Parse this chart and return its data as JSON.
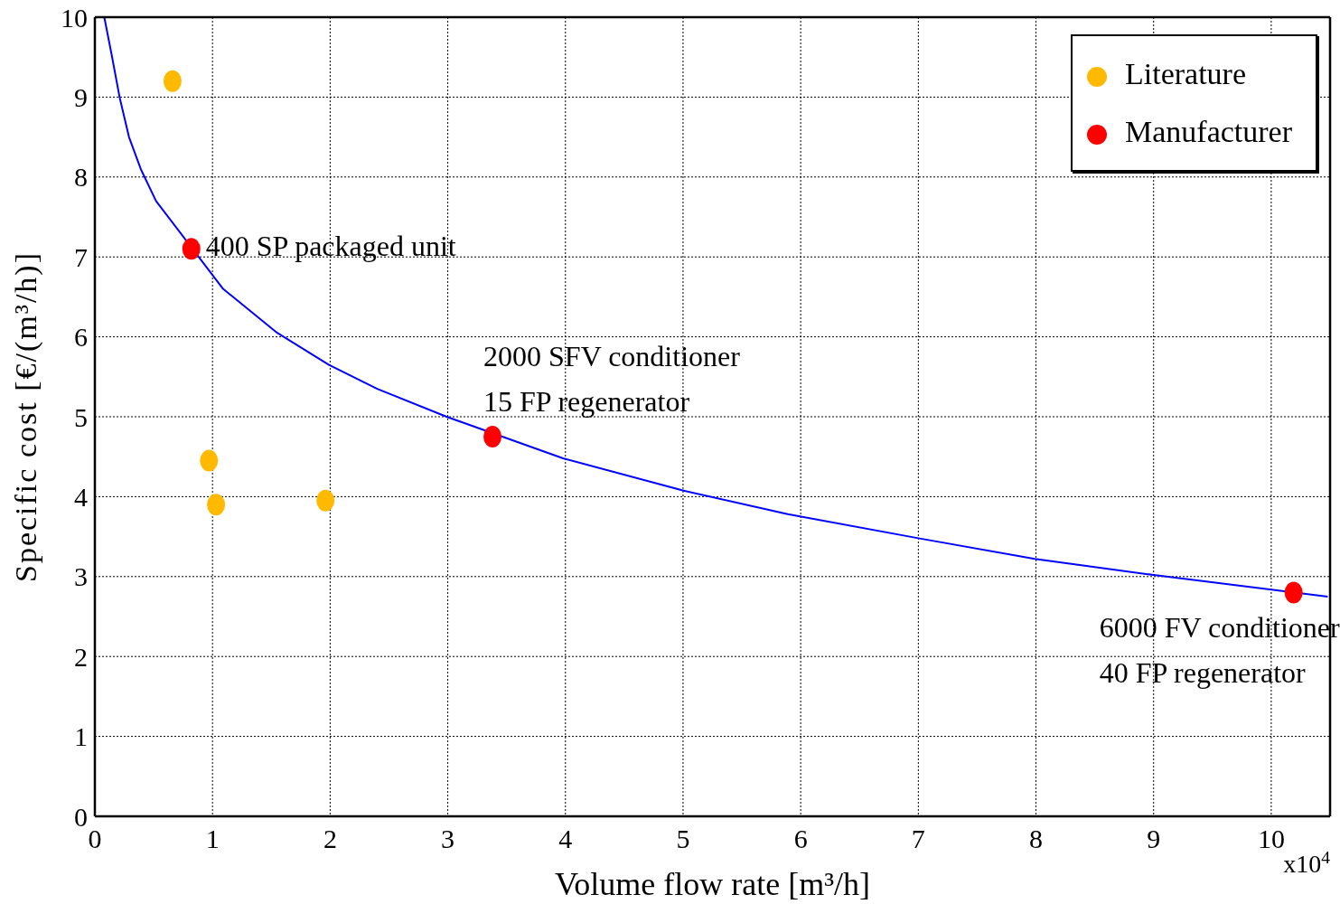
{
  "chart_data": {
    "type": "scatter",
    "xlabel": "Volume flow rate [m³/h]",
    "ylabel": "Specific cost [€/(m³/h)]",
    "xlim": [
      0,
      10.5
    ],
    "xticks": [
      0,
      1,
      2,
      3,
      4,
      5,
      6,
      7,
      8,
      9,
      10
    ],
    "ylim": [
      0,
      10
    ],
    "yticks": [
      0,
      1,
      2,
      3,
      4,
      5,
      6,
      7,
      8,
      9,
      10
    ],
    "grid": true,
    "legend": "top right",
    "series": [
      {
        "name": "Literature",
        "color": "#ffb900",
        "marker": "circle",
        "x": [
          0.66,
          0.97,
          1.03,
          1.96
        ],
        "values": [
          9.2,
          4.45,
          3.9,
          3.95
        ]
      },
      {
        "name": "Manufacturer",
        "color": "#ff0000",
        "marker": "circle",
        "x": [
          0.82,
          3.38,
          10.19
        ],
        "values": [
          7.1,
          4.75,
          2.8
        ]
      },
      {
        "type": "line",
        "color": "#0000ff",
        "marker": "none",
        "line_style": "solid",
        "x": [
          0.08,
          0.14,
          0.21,
          0.29,
          0.39,
          0.52,
          1.09,
          1.55,
          1.99,
          2.4,
          2.99,
          3.98,
          4.99,
          5.89,
          7.0,
          7.99,
          9.0,
          10.48
        ],
        "values": [
          10,
          9.55,
          9.0,
          8.5,
          8.1,
          7.7,
          6.6,
          6.05,
          5.65,
          5.35,
          5.0,
          4.48,
          4.08,
          3.78,
          3.48,
          3.22,
          3.02,
          2.75
        ]
      }
    ],
    "annotations": [
      {
        "text": "400 SP packaged unit",
        "x": 0.82,
        "y": 7.1
      },
      {
        "text": "2000 SFV conditioner\n15 FP regenerator",
        "x": 3.38,
        "y": 4.75
      },
      {
        "text": "6000 FV conditioner\n40 FP regenerator",
        "x": 10.19,
        "y": 2.8
      },
      "x10$^{4}$"
    ]
  }
}
